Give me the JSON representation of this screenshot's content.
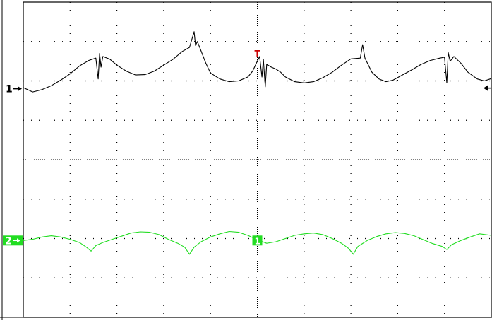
{
  "chart_data": {
    "type": "line",
    "grid": true,
    "xlim": [
      0,
      10
    ],
    "ylim": [
      -4,
      4
    ],
    "colors": {
      "ch1": "#000000",
      "ch2": "#22dd22",
      "ch2_marker_bg": "#22dd22",
      "trigger": "#cc0000",
      "grid": "#000000",
      "background": "#ffffff"
    },
    "channel_markers": [
      {
        "label": "1",
        "channel": "ch1",
        "level": 1.8
      },
      {
        "label": "2",
        "channel": "ch2",
        "level": -2.05
      }
    ],
    "trigger_marker": {
      "label": "T",
      "x": 5.0
    },
    "ch2_center_marker": {
      "label": "1",
      "x": 5.0
    },
    "series": [
      {
        "id": "ch1",
        "values": [
          [
            0.0,
            1.83
          ],
          [
            0.2,
            1.72
          ],
          [
            0.4,
            1.78
          ],
          [
            0.6,
            1.88
          ],
          [
            0.8,
            2.02
          ],
          [
            1.0,
            2.18
          ],
          [
            1.2,
            2.38
          ],
          [
            1.4,
            2.52
          ],
          [
            1.55,
            2.58
          ],
          [
            1.6,
            2.05
          ],
          [
            1.63,
            2.7
          ],
          [
            1.66,
            2.35
          ],
          [
            1.7,
            2.62
          ],
          [
            1.85,
            2.55
          ],
          [
            2.0,
            2.4
          ],
          [
            2.2,
            2.25
          ],
          [
            2.4,
            2.15
          ],
          [
            2.6,
            2.16
          ],
          [
            2.8,
            2.25
          ],
          [
            3.0,
            2.4
          ],
          [
            3.2,
            2.55
          ],
          [
            3.4,
            2.75
          ],
          [
            3.55,
            2.85
          ],
          [
            3.6,
            3.05
          ],
          [
            3.65,
            3.25
          ],
          [
            3.68,
            2.9
          ],
          [
            3.72,
            3.0
          ],
          [
            3.78,
            2.82
          ],
          [
            3.9,
            2.45
          ],
          [
            4.0,
            2.2
          ],
          [
            4.2,
            2.05
          ],
          [
            4.4,
            1.98
          ],
          [
            4.6,
            2.0
          ],
          [
            4.8,
            2.1
          ],
          [
            4.9,
            2.25
          ],
          [
            5.0,
            2.5
          ],
          [
            5.05,
            2.62
          ],
          [
            5.1,
            2.1
          ],
          [
            5.13,
            2.55
          ],
          [
            5.17,
            1.85
          ],
          [
            5.2,
            2.42
          ],
          [
            5.3,
            2.35
          ],
          [
            5.4,
            2.3
          ],
          [
            5.5,
            2.22
          ],
          [
            5.6,
            2.1
          ],
          [
            5.8,
            1.98
          ],
          [
            6.0,
            1.95
          ],
          [
            6.2,
            1.98
          ],
          [
            6.4,
            2.08
          ],
          [
            6.6,
            2.22
          ],
          [
            6.8,
            2.4
          ],
          [
            7.0,
            2.56
          ],
          [
            7.2,
            2.58
          ],
          [
            7.25,
            2.92
          ],
          [
            7.3,
            2.58
          ],
          [
            7.45,
            2.22
          ],
          [
            7.6,
            2.05
          ],
          [
            7.75,
            1.98
          ],
          [
            7.9,
            2.02
          ],
          [
            8.1,
            2.15
          ],
          [
            8.3,
            2.28
          ],
          [
            8.5,
            2.42
          ],
          [
            8.7,
            2.52
          ],
          [
            8.9,
            2.58
          ],
          [
            9.0,
            2.6
          ],
          [
            9.05,
            1.95
          ],
          [
            9.08,
            2.72
          ],
          [
            9.12,
            2.5
          ],
          [
            9.2,
            2.62
          ],
          [
            9.35,
            2.45
          ],
          [
            9.5,
            2.22
          ],
          [
            9.7,
            2.05
          ],
          [
            9.85,
            2.0
          ],
          [
            10.0,
            2.06
          ]
        ]
      },
      {
        "id": "ch2",
        "values": [
          [
            0.0,
            -2.05
          ],
          [
            0.2,
            -2.02
          ],
          [
            0.4,
            -1.96
          ],
          [
            0.6,
            -1.93
          ],
          [
            0.8,
            -1.96
          ],
          [
            1.0,
            -2.02
          ],
          [
            1.2,
            -2.1
          ],
          [
            1.35,
            -2.22
          ],
          [
            1.45,
            -2.32
          ],
          [
            1.55,
            -2.18
          ],
          [
            1.7,
            -2.1
          ],
          [
            1.9,
            -2.02
          ],
          [
            2.1,
            -1.94
          ],
          [
            2.3,
            -1.86
          ],
          [
            2.5,
            -1.83
          ],
          [
            2.7,
            -1.84
          ],
          [
            2.9,
            -1.9
          ],
          [
            3.1,
            -2.02
          ],
          [
            3.3,
            -2.12
          ],
          [
            3.45,
            -2.22
          ],
          [
            3.55,
            -2.4
          ],
          [
            3.65,
            -2.22
          ],
          [
            3.8,
            -2.08
          ],
          [
            4.0,
            -1.96
          ],
          [
            4.2,
            -1.88
          ],
          [
            4.4,
            -1.82
          ],
          [
            4.6,
            -1.84
          ],
          [
            4.8,
            -1.92
          ],
          [
            5.0,
            -2.03
          ],
          [
            5.2,
            -2.12
          ],
          [
            5.4,
            -2.08
          ],
          [
            5.6,
            -2.0
          ],
          [
            5.8,
            -1.92
          ],
          [
            6.0,
            -1.88
          ],
          [
            6.2,
            -1.86
          ],
          [
            6.4,
            -1.9
          ],
          [
            6.6,
            -2.0
          ],
          [
            6.8,
            -2.12
          ],
          [
            6.95,
            -2.25
          ],
          [
            7.05,
            -2.4
          ],
          [
            7.15,
            -2.2
          ],
          [
            7.35,
            -2.05
          ],
          [
            7.55,
            -1.95
          ],
          [
            7.75,
            -1.88
          ],
          [
            7.95,
            -1.85
          ],
          [
            8.15,
            -1.87
          ],
          [
            8.35,
            -1.93
          ],
          [
            8.55,
            -2.03
          ],
          [
            8.75,
            -2.13
          ],
          [
            8.95,
            -2.2
          ],
          [
            9.05,
            -2.28
          ],
          [
            9.15,
            -2.16
          ],
          [
            9.35,
            -2.05
          ],
          [
            9.55,
            -1.96
          ],
          [
            9.75,
            -1.88
          ],
          [
            10.0,
            -1.92
          ]
        ]
      }
    ]
  }
}
